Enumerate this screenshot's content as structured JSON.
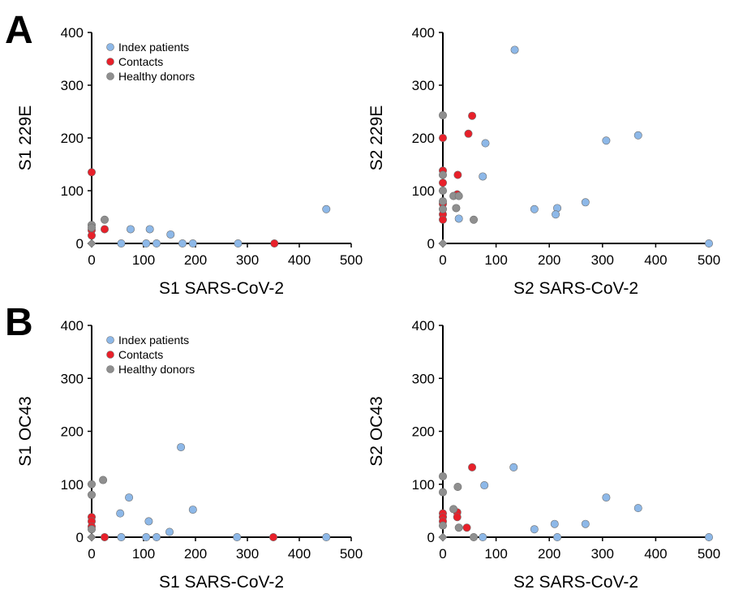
{
  "panel_labels": [
    "A",
    "B"
  ],
  "legend": [
    {
      "label": "Index patients",
      "color": "#8db8e8"
    },
    {
      "label": "Contacts",
      "color": "#e8202a"
    },
    {
      "label": "Healthy donors",
      "color": "#8f8f8f"
    }
  ],
  "colors": {
    "index": "#8db8e8",
    "contacts": "#e8202a",
    "healthy": "#8f8f8f",
    "origin": "#8f8f8f"
  },
  "chart_data": [
    {
      "type": "scatter",
      "title": "",
      "xlabel": "S1 SARS-CoV-2",
      "ylabel": "S1 229E",
      "xlim": [
        0,
        500
      ],
      "ylim": [
        0,
        400
      ],
      "xticks": [
        0,
        100,
        200,
        300,
        400,
        500
      ],
      "yticks": [
        0,
        100,
        200,
        300,
        400
      ],
      "grid": false,
      "legend": true,
      "legend_position": "top-left",
      "series": [
        {
          "name": "Index patients",
          "points": [
            [
              57,
              0
            ],
            [
              75,
              27
            ],
            [
              105,
              0
            ],
            [
              112,
              27
            ],
            [
              125,
              0
            ],
            [
              152,
              17
            ],
            [
              175,
              0
            ],
            [
              195,
              0
            ],
            [
              282,
              0
            ],
            [
              452,
              65
            ]
          ]
        },
        {
          "name": "Contacts",
          "points": [
            [
              0,
              135
            ],
            [
              0,
              25
            ],
            [
              0,
              15
            ],
            [
              25,
              27
            ],
            [
              352,
              0
            ]
          ]
        },
        {
          "name": "Healthy donors",
          "points": [
            [
              0,
              35
            ],
            [
              0,
              30
            ],
            [
              25,
              45
            ]
          ]
        }
      ],
      "origin_marker": [
        0,
        0
      ]
    },
    {
      "type": "scatter",
      "title": "",
      "xlabel": "S2 SARS-CoV-2",
      "ylabel": "S2 229E",
      "xlim": [
        0,
        500
      ],
      "ylim": [
        0,
        400
      ],
      "xticks": [
        0,
        100,
        200,
        300,
        400,
        500
      ],
      "yticks": [
        0,
        100,
        200,
        300,
        400
      ],
      "grid": false,
      "legend": false,
      "series": [
        {
          "name": "Index patients",
          "points": [
            [
              135,
              367
            ],
            [
              80,
              190
            ],
            [
              75,
              127
            ],
            [
              30,
              47
            ],
            [
              172,
              65
            ],
            [
              215,
              67
            ],
            [
              212,
              55
            ],
            [
              268,
              78
            ],
            [
              307,
              195
            ],
            [
              367,
              205
            ],
            [
              500,
              0
            ]
          ]
        },
        {
          "name": "Contacts",
          "points": [
            [
              0,
              200
            ],
            [
              0,
              138
            ],
            [
              0,
              115
            ],
            [
              0,
              75
            ],
            [
              0,
              55
            ],
            [
              0,
              45
            ],
            [
              28,
              130
            ],
            [
              27,
              93
            ],
            [
              48,
              208
            ],
            [
              55,
              242
            ]
          ]
        },
        {
          "name": "Healthy donors",
          "points": [
            [
              0,
              243
            ],
            [
              0,
              130
            ],
            [
              0,
              100
            ],
            [
              0,
              80
            ],
            [
              0,
              65
            ],
            [
              20,
              90
            ],
            [
              30,
              90
            ],
            [
              25,
              67
            ],
            [
              58,
              45
            ]
          ]
        }
      ],
      "origin_marker": [
        0,
        0
      ]
    },
    {
      "type": "scatter",
      "title": "",
      "xlabel": "S1 SARS-CoV-2",
      "ylabel": "S1 OC43",
      "xlim": [
        0,
        500
      ],
      "ylim": [
        0,
        400
      ],
      "xticks": [
        0,
        100,
        200,
        300,
        400,
        500
      ],
      "yticks": [
        0,
        100,
        200,
        300,
        400
      ],
      "grid": false,
      "legend": true,
      "legend_position": "top-left",
      "series": [
        {
          "name": "Index patients",
          "points": [
            [
              172,
              170
            ],
            [
              72,
              75
            ],
            [
              55,
              45
            ],
            [
              110,
              30
            ],
            [
              195,
              52
            ],
            [
              57,
              0
            ],
            [
              105,
              0
            ],
            [
              125,
              0
            ],
            [
              150,
              10
            ],
            [
              280,
              0
            ],
            [
              452,
              0
            ]
          ]
        },
        {
          "name": "Contacts",
          "points": [
            [
              0,
              38
            ],
            [
              0,
              30
            ],
            [
              0,
              20
            ],
            [
              25,
              0
            ],
            [
              350,
              0
            ]
          ]
        },
        {
          "name": "Healthy donors",
          "points": [
            [
              0,
              100
            ],
            [
              0,
              80
            ],
            [
              0,
              15
            ],
            [
              22,
              108
            ]
          ]
        }
      ],
      "origin_marker": [
        0,
        0
      ]
    },
    {
      "type": "scatter",
      "title": "",
      "xlabel": "S2 SARS-CoV-2",
      "ylabel": "S2 OC43",
      "xlim": [
        0,
        500
      ],
      "ylim": [
        0,
        400
      ],
      "xticks": [
        0,
        100,
        200,
        300,
        400,
        500
      ],
      "yticks": [
        0,
        100,
        200,
        300,
        400
      ],
      "grid": false,
      "legend": false,
      "series": [
        {
          "name": "Index patients",
          "points": [
            [
              133,
              132
            ],
            [
              78,
              98
            ],
            [
              75,
              0
            ],
            [
              172,
              15
            ],
            [
              210,
              25
            ],
            [
              215,
              0
            ],
            [
              268,
              25
            ],
            [
              307,
              75
            ],
            [
              367,
              55
            ],
            [
              500,
              0
            ]
          ]
        },
        {
          "name": "Contacts",
          "points": [
            [
              55,
              132
            ],
            [
              0,
              45
            ],
            [
              0,
              38
            ],
            [
              0,
              30
            ],
            [
              27,
              47
            ],
            [
              27,
              38
            ],
            [
              45,
              18
            ]
          ]
        },
        {
          "name": "Healthy donors",
          "points": [
            [
              0,
              115
            ],
            [
              0,
              85
            ],
            [
              0,
              22
            ],
            [
              20,
              53
            ],
            [
              28,
              95
            ],
            [
              30,
              18
            ],
            [
              58,
              0
            ]
          ]
        }
      ],
      "origin_marker": [
        0,
        0
      ]
    }
  ]
}
